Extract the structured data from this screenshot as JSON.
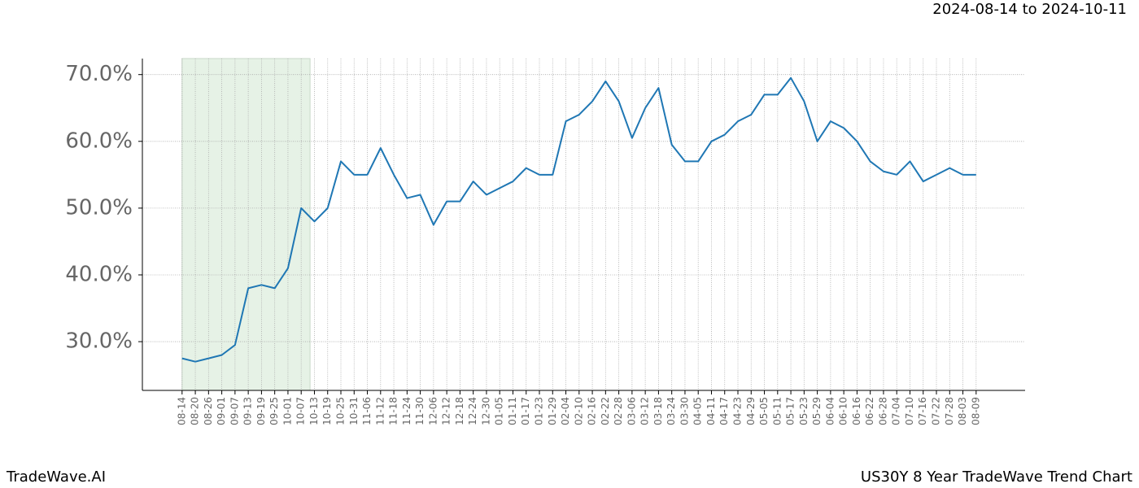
{
  "chart_data": {
    "type": "line",
    "title": "2024-08-14 to 2024-10-11",
    "brand": "TradeWave.AI",
    "subtitle": "US30Y 8 Year TradeWave Trend Chart",
    "categories": [
      "08-14",
      "08-20",
      "08-26",
      "09-01",
      "09-07",
      "09-13",
      "09-19",
      "09-25",
      "10-01",
      "10-07",
      "10-13",
      "10-19",
      "10-25",
      "10-31",
      "11-06",
      "11-12",
      "11-18",
      "11-24",
      "11-30",
      "12-06",
      "12-12",
      "12-18",
      "12-24",
      "12-30",
      "01-05",
      "01-11",
      "01-17",
      "01-23",
      "01-29",
      "02-04",
      "02-10",
      "02-16",
      "02-22",
      "02-28",
      "03-06",
      "03-12",
      "03-18",
      "03-24",
      "03-30",
      "04-05",
      "04-11",
      "04-17",
      "04-23",
      "04-29",
      "05-05",
      "05-11",
      "05-17",
      "05-23",
      "05-29",
      "06-04",
      "06-10",
      "06-16",
      "06-22",
      "06-28",
      "07-04",
      "07-10",
      "07-16",
      "07-22",
      "07-28",
      "08-03",
      "08-09"
    ],
    "series": [
      {
        "color": "#1f77b4",
        "values": [
          27.5,
          27,
          27.5,
          28,
          29.5,
          38,
          38.5,
          38,
          41,
          50,
          48,
          50,
          57,
          55,
          55,
          59,
          55,
          51.5,
          52,
          47.5,
          51,
          51,
          54,
          52,
          53,
          54,
          56,
          55,
          55,
          63,
          64,
          66,
          69,
          66,
          60.5,
          65,
          68,
          59.5,
          57,
          57,
          60,
          61,
          63,
          64,
          67,
          67,
          69.5,
          66,
          60,
          63,
          62,
          60,
          57,
          55.5,
          55,
          57,
          54,
          55,
          56,
          55,
          55
        ]
      }
    ],
    "highlight_range": [
      0,
      9.67
    ],
    "highlight_color": "#e6f2e6",
    "xlim": [
      -3,
      63.7
    ],
    "ylim": [
      22.7,
      72.4
    ],
    "yticks": [
      {
        "value": 30,
        "label": "30.0%"
      },
      {
        "value": 40,
        "label": "40.0%"
      },
      {
        "value": 50,
        "label": "50.0%"
      },
      {
        "value": 60,
        "label": "60.0%"
      },
      {
        "value": 70,
        "label": "70.0%"
      }
    ],
    "grid": true
  }
}
